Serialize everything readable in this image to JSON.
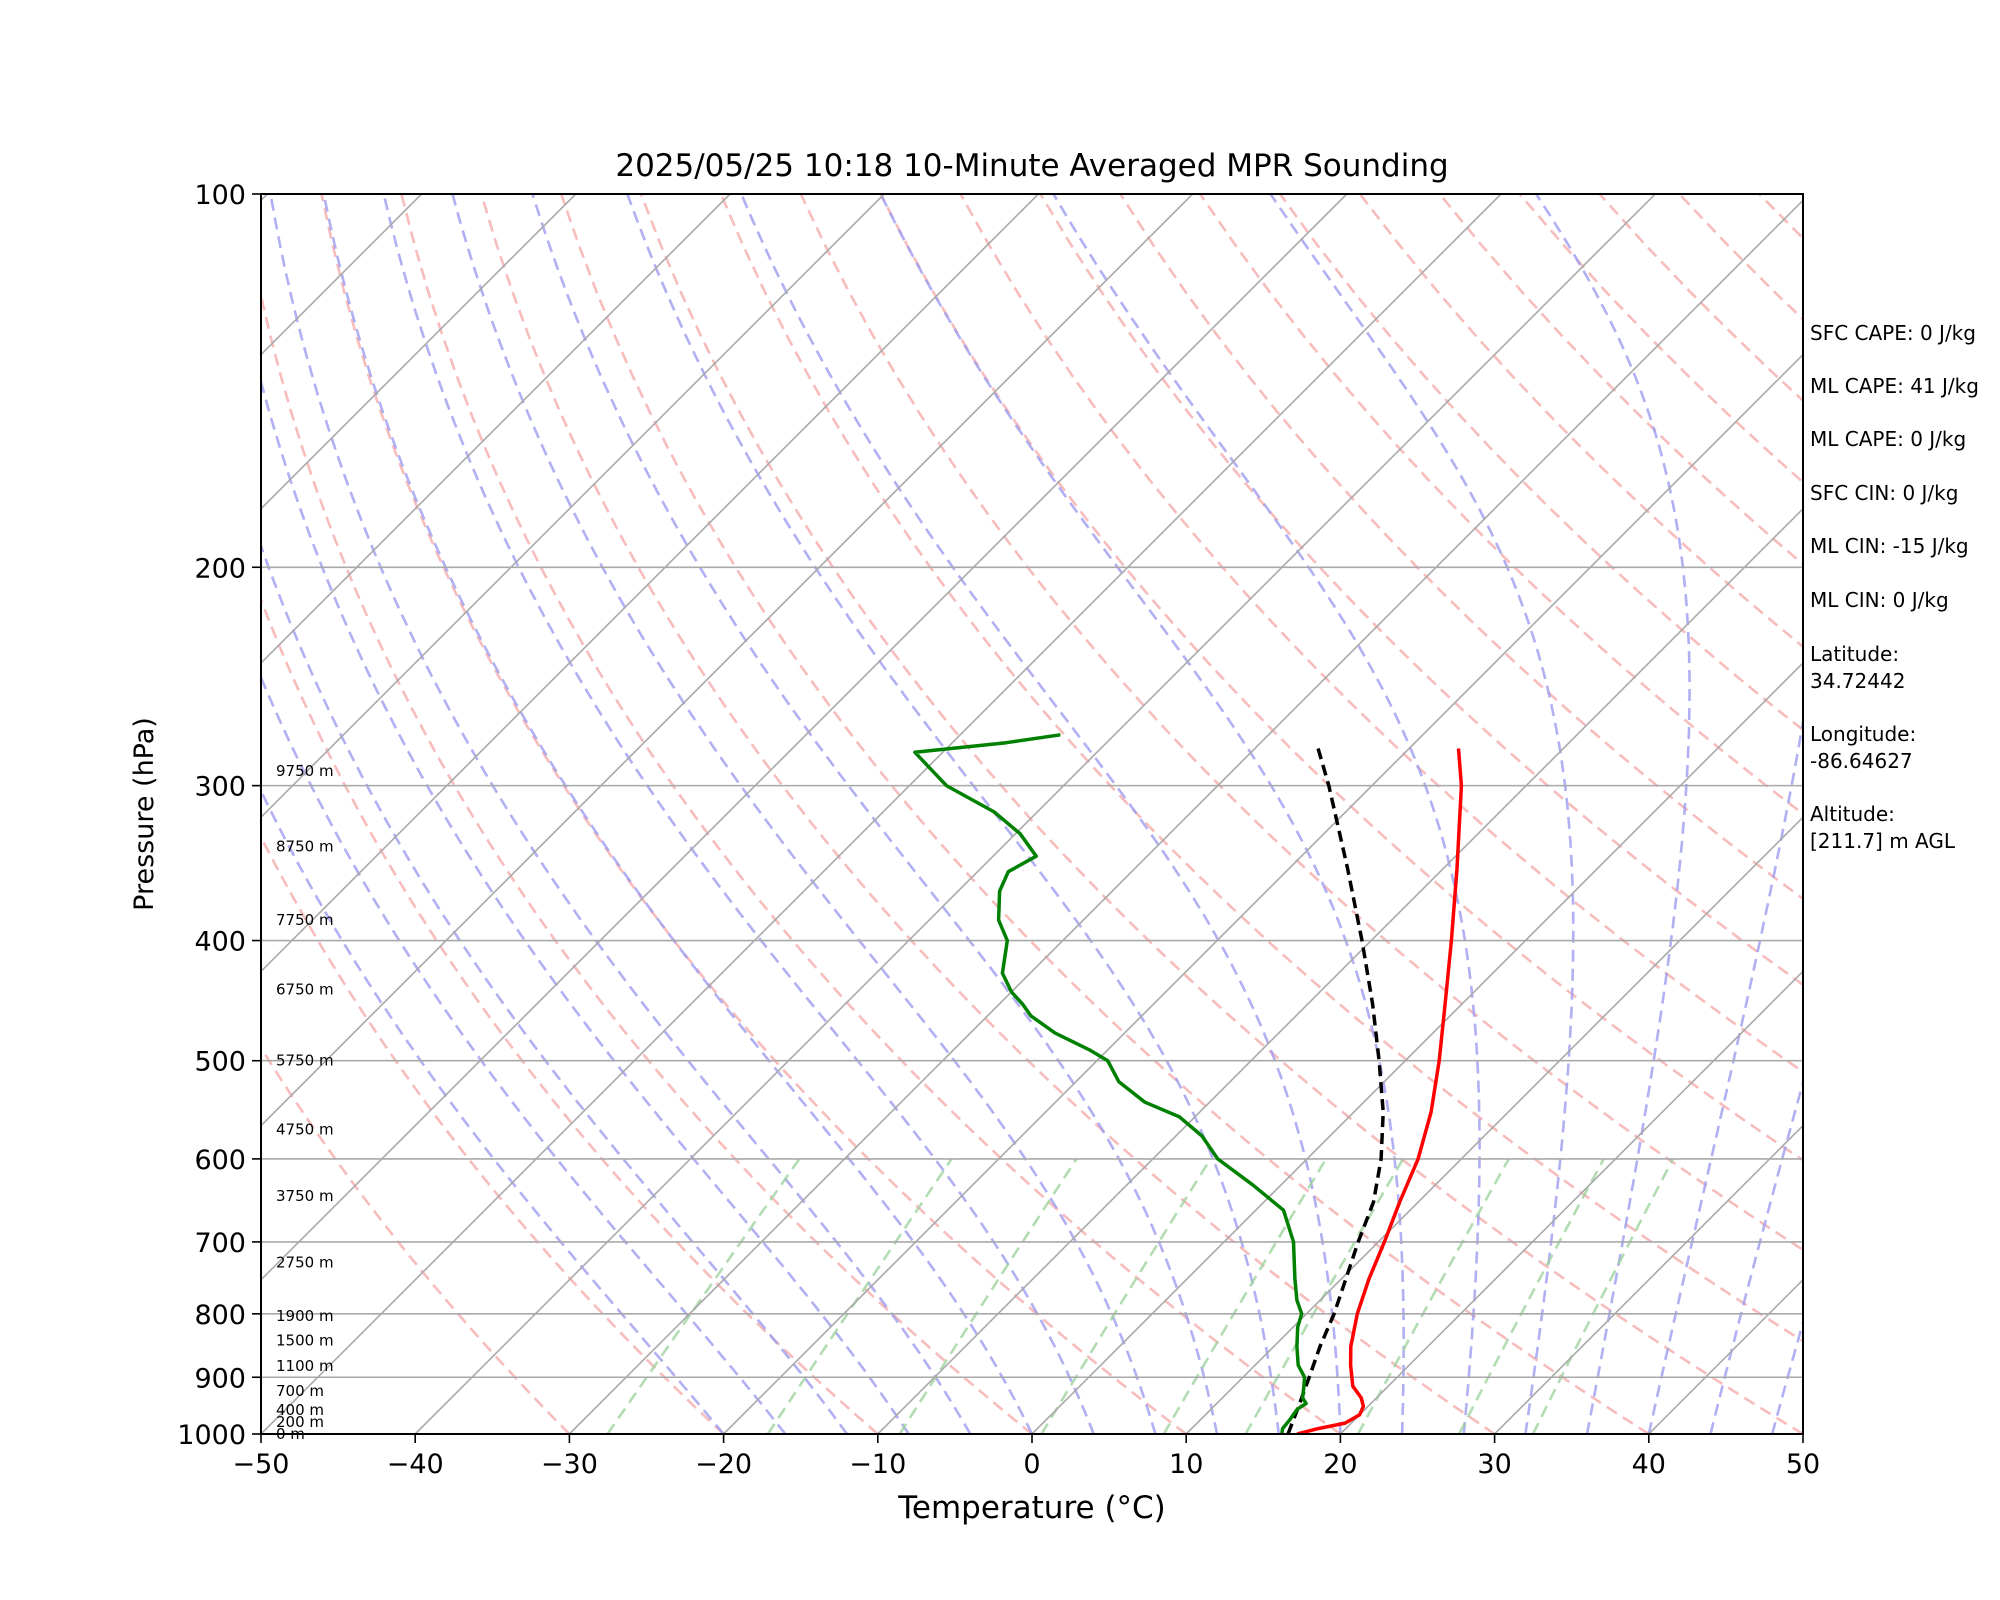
{
  "chart_data": {
    "type": "line",
    "chart_kind": "skew-T log-p diagram",
    "title": "2025/05/25 10:18 10-Minute Averaged MPR Sounding",
    "xlabel": "Temperature (°C)",
    "ylabel": "Pressure (hPa)",
    "xlim": [
      -50,
      50
    ],
    "ylim": [
      1000,
      100
    ],
    "y_scale": "log",
    "x_ticks": [
      "−50",
      "−40",
      "−30",
      "−20",
      "−10",
      "0",
      "10",
      "20",
      "30",
      "40",
      "50"
    ],
    "y_ticks": [
      "100",
      "200",
      "300",
      "400",
      "500",
      "600",
      "700",
      "800",
      "900",
      "1000"
    ],
    "grid": "isobars at tick pressures; skewed isotherms",
    "background_lines": {
      "isotherm_color": "#a9a9a9",
      "dry_adiabat_color": "#f4a6a6",
      "moist_adiabat_color": "#9c9cf0",
      "mixing_ratio_color": "#9fd39f"
    },
    "height_labels": [
      {
        "label": "0 m",
        "pressure": 1000
      },
      {
        "label": "200 m",
        "pressure": 978
      },
      {
        "label": "400 m",
        "pressure": 956
      },
      {
        "label": "700 m",
        "pressure": 923
      },
      {
        "label": "1100 m",
        "pressure": 881
      },
      {
        "label": "1500 m",
        "pressure": 841
      },
      {
        "label": "1900 m",
        "pressure": 803
      },
      {
        "label": "2750 m",
        "pressure": 727
      },
      {
        "label": "3750 m",
        "pressure": 643
      },
      {
        "label": "4750 m",
        "pressure": 568
      },
      {
        "label": "5750 m",
        "pressure": 500
      },
      {
        "label": "6750 m",
        "pressure": 438
      },
      {
        "label": "7750 m",
        "pressure": 385
      },
      {
        "label": "8750 m",
        "pressure": 336
      },
      {
        "label": "9750 m",
        "pressure": 292
      }
    ],
    "series": [
      {
        "color": "#ff0000",
        "style": "solid",
        "points": [
          [
            1000,
            17.2
          ],
          [
            990,
            18.2
          ],
          [
            980,
            19.6
          ],
          [
            965,
            20.0
          ],
          [
            950,
            19.7
          ],
          [
            935,
            19.0
          ],
          [
            915,
            17.7
          ],
          [
            880,
            16.2
          ],
          [
            850,
            15.0
          ],
          [
            800,
            13.3
          ],
          [
            750,
            11.8
          ],
          [
            700,
            10.4
          ],
          [
            650,
            8.8
          ],
          [
            600,
            7.2
          ],
          [
            550,
            5.0
          ],
          [
            500,
            2.2
          ],
          [
            450,
            -1.1
          ],
          [
            400,
            -4.8
          ],
          [
            350,
            -9.1
          ],
          [
            300,
            -14.2
          ],
          [
            280,
            -16.8
          ]
        ]
      },
      {
        "color": "#000000",
        "style": "dashed",
        "points": [
          [
            1000,
            16.6
          ],
          [
            950,
            15.5
          ],
          [
            900,
            14.3
          ],
          [
            850,
            13.0
          ],
          [
            800,
            11.8
          ],
          [
            750,
            10.3
          ],
          [
            700,
            8.7
          ],
          [
            650,
            7.1
          ],
          [
            600,
            4.8
          ],
          [
            550,
            1.9
          ],
          [
            500,
            -1.7
          ],
          [
            450,
            -5.8
          ],
          [
            400,
            -10.6
          ],
          [
            350,
            -16.2
          ],
          [
            300,
            -22.8
          ],
          [
            280,
            -25.9
          ]
        ]
      },
      {
        "color": "#008000",
        "style": "solid",
        "points": [
          [
            1000,
            16.2
          ],
          [
            990,
            15.9
          ],
          [
            975,
            15.8
          ],
          [
            955,
            15.6
          ],
          [
            945,
            15.8
          ],
          [
            935,
            15.2
          ],
          [
            920,
            14.7
          ],
          [
            900,
            14.0
          ],
          [
            880,
            12.8
          ],
          [
            850,
            11.5
          ],
          [
            820,
            10.3
          ],
          [
            800,
            9.7
          ],
          [
            780,
            8.5
          ],
          [
            750,
            7.0
          ],
          [
            700,
            4.5
          ],
          [
            660,
            1.8
          ],
          [
            630,
            -1.8
          ],
          [
            600,
            -5.8
          ],
          [
            575,
            -8.3
          ],
          [
            555,
            -11.0
          ],
          [
            540,
            -14.2
          ],
          [
            520,
            -17.2
          ],
          [
            500,
            -19.3
          ],
          [
            490,
            -21.2
          ],
          [
            475,
            -24.5
          ],
          [
            460,
            -27.2
          ],
          [
            450,
            -28.5
          ],
          [
            440,
            -30.0
          ],
          [
            425,
            -31.8
          ],
          [
            400,
            -33.6
          ],
          [
            385,
            -35.5
          ],
          [
            365,
            -37.3
          ],
          [
            352,
            -38.0
          ],
          [
            342,
            -37.2
          ],
          [
            328,
            -39.7
          ],
          [
            315,
            -42.8
          ],
          [
            300,
            -47.6
          ],
          [
            290,
            -49.9
          ],
          [
            282,
            -51.8
          ],
          [
            277,
            -46.5
          ],
          [
            273,
            -43.5
          ]
        ]
      }
    ]
  },
  "info_panel": {
    "sfc_cape": "SFC CAPE: 0 J/kg",
    "ml_cape_1": "ML CAPE: 41 J/kg",
    "ml_cape_2": "ML CAPE: 0 J/kg",
    "sfc_cin": "SFC CIN: 0 J/kg",
    "ml_cin_1": "ML CIN: -15 J/kg",
    "ml_cin_2": "ML CIN: 0 J/kg",
    "latitude_label": "Latitude:",
    "latitude_value": "34.72442",
    "longitude_label": "Longitude:",
    "longitude_value": "-86.64627",
    "altitude_label": "Altitude:",
    "altitude_value": "[211.7] m AGL"
  }
}
